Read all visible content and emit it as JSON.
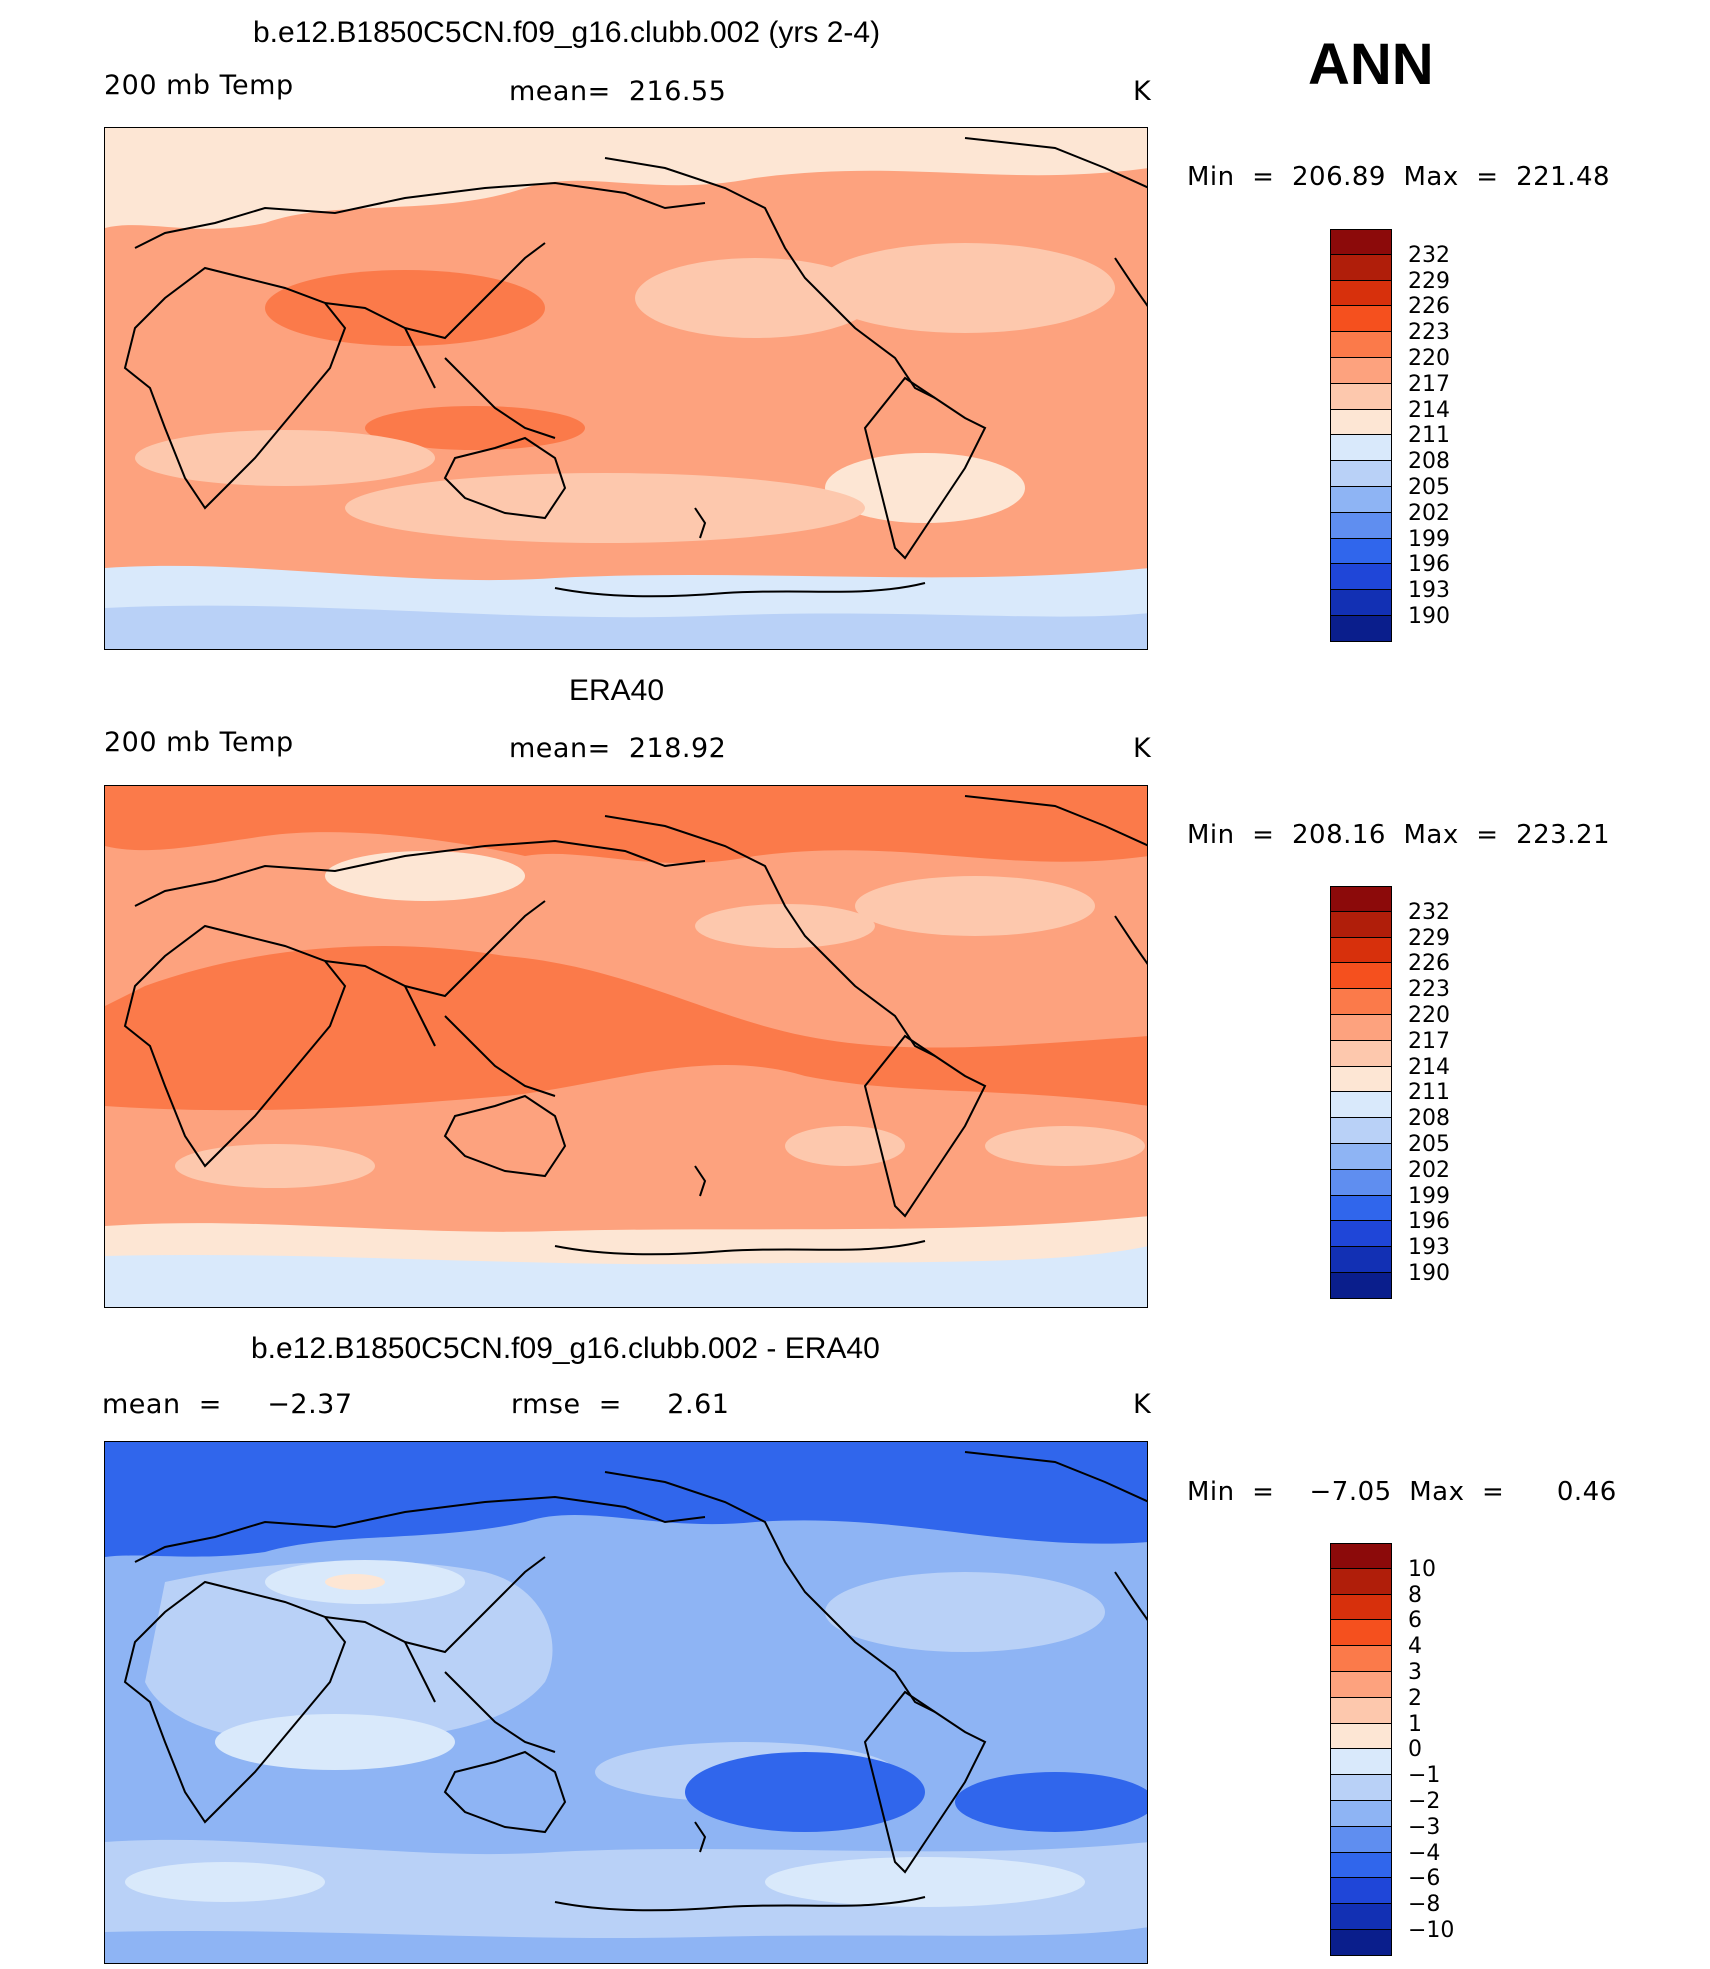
{
  "season": "ANN",
  "panels": [
    {
      "title": "b.e12.B1850C5CN.f09_g16.clubb.002 (yrs 2-4)",
      "left_label": "200 mb Temp",
      "center_label": "mean=  216.55",
      "units": "K",
      "minmax": "Min  =  206.89  Max  =  221.48",
      "colorbar_labels": [
        "232",
        "229",
        "226",
        "223",
        "220",
        "217",
        "214",
        "211",
        "208",
        "205",
        "202",
        "199",
        "196",
        "193",
        "190"
      ],
      "colorbar_colors": [
        "#8c0a0a",
        "#b01e0a",
        "#d7300c",
        "#f5501e",
        "#fb7a4a",
        "#fda27e",
        "#fdc8ad",
        "#fde6d4",
        "#d9e9fb",
        "#b9d1f7",
        "#8eb4f4",
        "#5f8ef0",
        "#3066ec",
        "#1f46d8",
        "#1230b4",
        "#0a1e8c"
      ],
      "fields": {
        "background": "#fda27e",
        "polar_north": "#fde6d4",
        "polar_south": "#d9e9fb",
        "deep_south": "#b9d1f7",
        "patch_a": "#fdc8ad",
        "patch_b": "#fb7a4a",
        "patch_c": "#fde6d4"
      }
    },
    {
      "title": "ERA40",
      "left_label": "200 mb Temp",
      "center_label": "mean=  218.92",
      "units": "K",
      "minmax": "Min  =  208.16  Max  =  223.21",
      "colorbar_labels": [
        "232",
        "229",
        "226",
        "223",
        "220",
        "217",
        "214",
        "211",
        "208",
        "205",
        "202",
        "199",
        "196",
        "193",
        "190"
      ],
      "colorbar_colors": [
        "#8c0a0a",
        "#b01e0a",
        "#d7300c",
        "#f5501e",
        "#fb7a4a",
        "#fda27e",
        "#fdc8ad",
        "#fde6d4",
        "#d9e9fb",
        "#b9d1f7",
        "#8eb4f4",
        "#5f8ef0",
        "#3066ec",
        "#1f46d8",
        "#1230b4",
        "#0a1e8c"
      ],
      "fields": {
        "background": "#fda27e",
        "polar_north": "#fb7a4a",
        "polar_south": "#d9e9fb",
        "deep_south": "#d9e9fb",
        "patch_a": "#fb7a4a",
        "patch_b": "#fdc8ad",
        "patch_c": "#fde6d4"
      }
    },
    {
      "title": "b.e12.B1850C5CN.f09_g16.clubb.002 - ERA40",
      "left_label": "mean  =     −2.37",
      "center_label": "rmse  =     2.61",
      "units": "K",
      "minmax": "Min  =    −7.05  Max  =      0.46",
      "colorbar_labels": [
        "10",
        "8",
        "6",
        "4",
        "3",
        "2",
        "1",
        "0",
        "−1",
        "−2",
        "−3",
        "−4",
        "−6",
        "−8",
        "−10"
      ],
      "colorbar_colors": [
        "#8c0a0a",
        "#b01e0a",
        "#d7300c",
        "#f5501e",
        "#fb7a4a",
        "#fda27e",
        "#fdc8ad",
        "#fde6d4",
        "#d9e9fb",
        "#b9d1f7",
        "#8eb4f4",
        "#5f8ef0",
        "#3066ec",
        "#1f46d8",
        "#1230b4",
        "#0a1e8c"
      ],
      "fields": {
        "background": "#8eb4f4",
        "polar_north": "#3066ec",
        "polar_south": "#b9d1f7",
        "deep_south": "#8eb4f4",
        "patch_a": "#b9d1f7",
        "patch_b": "#3066ec",
        "patch_c": "#d9e9fb"
      }
    }
  ]
}
